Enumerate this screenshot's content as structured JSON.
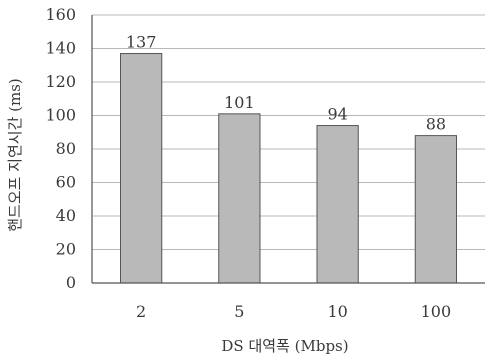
{
  "chart_data": {
    "type": "bar",
    "categories": [
      "2",
      "5",
      "10",
      "100"
    ],
    "values": [
      137,
      101,
      94,
      88
    ],
    "data_labels": [
      "137",
      "101",
      "94",
      "88"
    ],
    "title": "",
    "xlabel": "DS 대역폭 (Mbps)",
    "ylabel": "핸드오프 지연시간 (ms)",
    "ylim": [
      0,
      160
    ],
    "yticks": [
      "0",
      "20",
      "40",
      "60",
      "80",
      "100",
      "120",
      "140",
      "160"
    ],
    "grid": true,
    "legend": "none",
    "bar_color": "#b9b9b9"
  }
}
